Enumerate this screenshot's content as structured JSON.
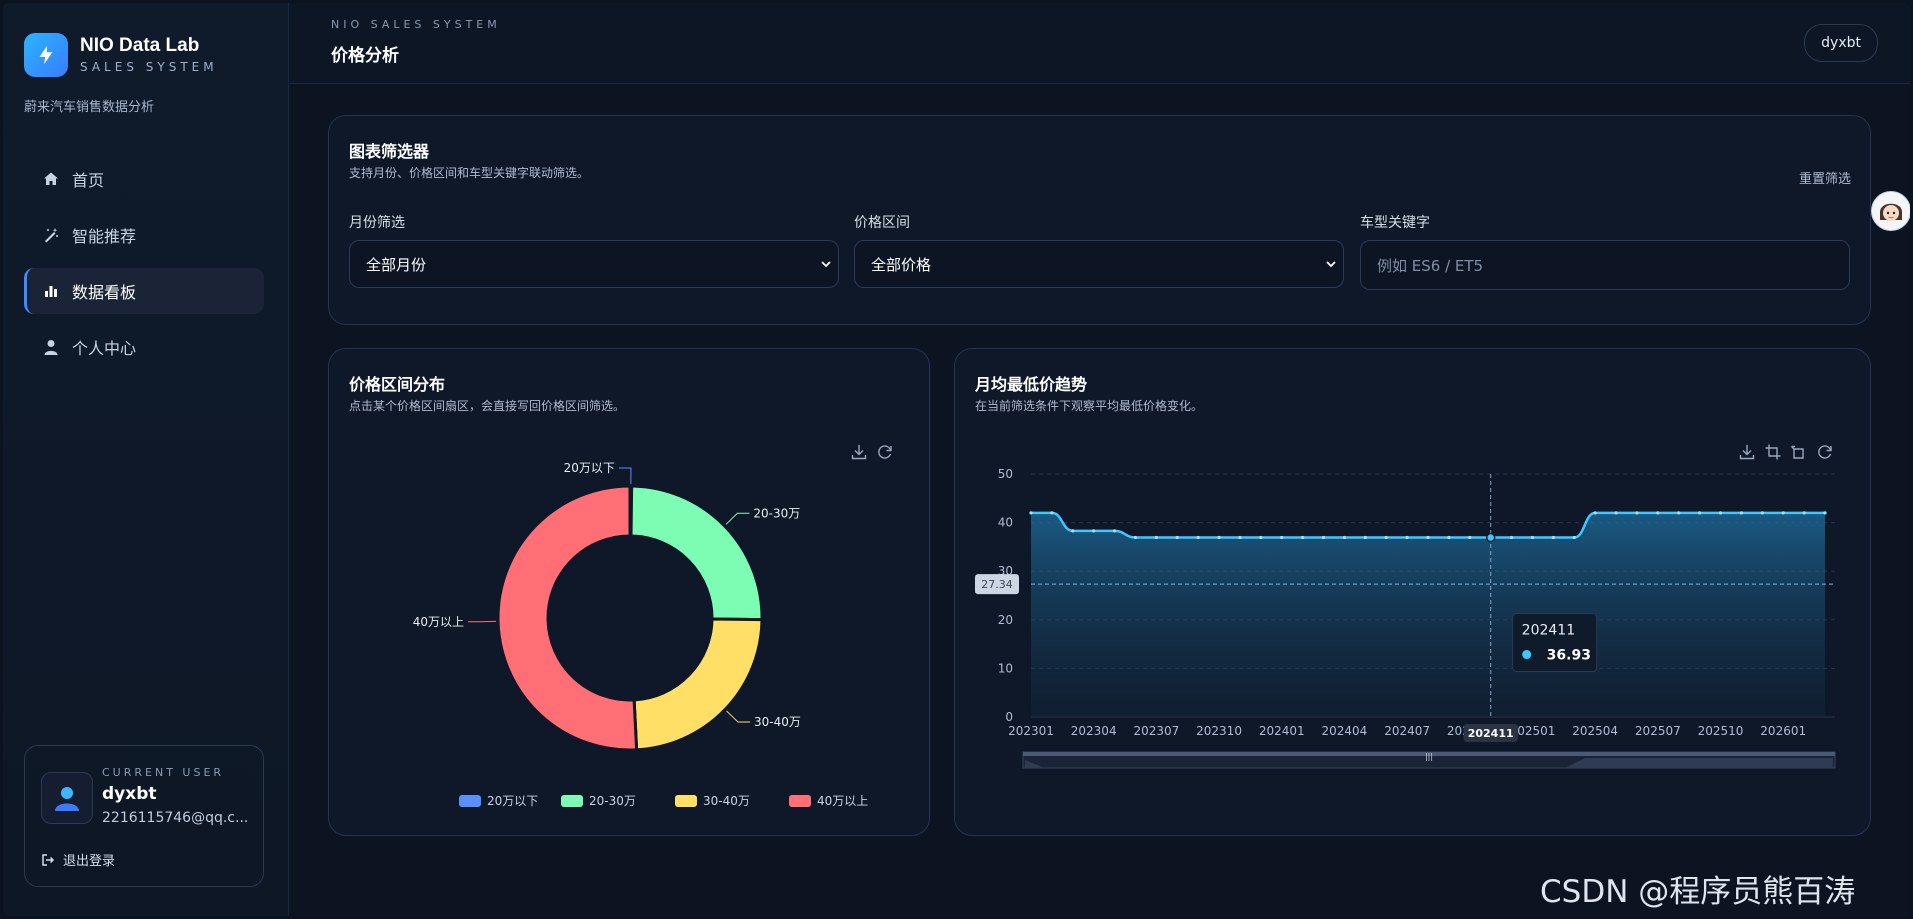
{
  "app": {
    "brand_title": "NIO Data Lab",
    "brand_sub": "SALES SYSTEM",
    "brand_desc": "蔚来汽车销售数据分析",
    "brand_icon": "lightning-icon"
  },
  "sidebar": {
    "items": [
      {
        "label": "首页",
        "icon": "home-icon",
        "active": false
      },
      {
        "label": "智能推荐",
        "icon": "magic-wand-icon",
        "active": false
      },
      {
        "label": "数据看板",
        "icon": "bar-chart-icon",
        "active": true
      },
      {
        "label": "个人中心",
        "icon": "user-icon",
        "active": false
      }
    ]
  },
  "user": {
    "kicker": "CURRENT USER",
    "name": "dyxbt",
    "email": "2216115746@qq.c...",
    "logout": "退出登录"
  },
  "header": {
    "kicker": "NIO SALES SYSTEM",
    "title": "价格分析",
    "user_chip": "dyxbt"
  },
  "filter": {
    "title": "图表筛选器",
    "desc": "支持月份、价格区间和车型关键字联动筛选。",
    "reset": "重置筛选",
    "month_label": "月份筛选",
    "month_value": "全部月份",
    "price_label": "价格区间",
    "price_value": "全部价格",
    "model_label": "车型关键字",
    "model_placeholder": "例如 ES6 / ET5"
  },
  "donut": {
    "title": "价格区间分布",
    "desc": "点击某个价格区间扇区，会直接写回价格区间筛选。"
  },
  "line": {
    "title": "月均最低价趋势",
    "desc": "在当前筛选条件下观察平均最低价格变化。",
    "tooltip_label": "202411",
    "tooltip_value": "36.93",
    "avg_marker": "27.34"
  },
  "chart_data": [
    {
      "type": "pie",
      "variant": "donut",
      "categories": [
        "20万以下",
        "20-30万",
        "30-40万",
        "40万以上"
      ],
      "values": [
        0.2,
        25,
        24,
        50.8
      ],
      "colors": [
        "#5b8ff9",
        "#7dfcb4",
        "#ffdf66",
        "#ff6f75"
      ],
      "legend": "bottom"
    },
    {
      "type": "area",
      "x": [
        "202301",
        "202302",
        "202303",
        "202304",
        "202305",
        "202306",
        "202307",
        "202308",
        "202309",
        "202310",
        "202311",
        "202312",
        "202401",
        "202402",
        "202403",
        "202404",
        "202405",
        "202406",
        "202407",
        "202408",
        "202409",
        "202410",
        "202411",
        "202412",
        "202501",
        "202502",
        "202503",
        "202504",
        "202505",
        "202506",
        "202507",
        "202508",
        "202509",
        "202510",
        "202511",
        "202512",
        "202601",
        "202602",
        "202603"
      ],
      "x_tick_labels": [
        "202301",
        "202304",
        "202307",
        "202310",
        "202401",
        "202404",
        "202407",
        "202410",
        "202501",
        "202504",
        "202507",
        "202510",
        "202601"
      ],
      "series": [
        {
          "values": [
            42,
            42,
            38.3,
            38.3,
            38.3,
            36.93,
            36.93,
            36.93,
            36.93,
            36.93,
            36.93,
            36.93,
            36.93,
            36.93,
            36.93,
            36.93,
            36.93,
            36.93,
            36.93,
            36.93,
            36.93,
            36.93,
            36.93,
            36.93,
            36.93,
            36.93,
            36.93,
            42,
            42,
            42,
            42,
            42,
            42,
            42,
            42,
            42,
            42,
            42,
            42
          ],
          "color": "#3ec7ff"
        }
      ],
      "ylim": [
        0,
        50
      ],
      "y_ticks": [
        0,
        10,
        20,
        30,
        40,
        50
      ],
      "average_line": 27.34,
      "grid": true
    }
  ]
}
